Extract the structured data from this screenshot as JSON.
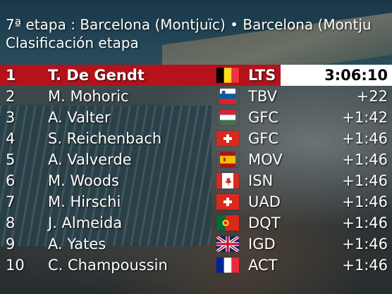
{
  "header": {
    "stage_line": "7ª etapa : Barcelona (Montjuïc) • Barcelona (Montju",
    "classification": "Clasificación etapa"
  },
  "colors": {
    "leader_red": "#b5121b",
    "white": "#ffffff"
  },
  "rows": [
    {
      "pos": "1",
      "name": "T. De Gendt",
      "flag": "belgium-flag-icon",
      "team": "LTS",
      "time": "3:06:10"
    },
    {
      "pos": "2",
      "name": "M. Mohoric",
      "flag": "slovenia-flag-icon",
      "team": "TBV",
      "time": "+22"
    },
    {
      "pos": "3",
      "name": "A. Valter",
      "flag": "hungary-flag-icon",
      "team": "GFC",
      "time": "+1:42"
    },
    {
      "pos": "4",
      "name": "S. Reichenbach",
      "flag": "switzerland-flag-icon",
      "team": "GFC",
      "time": "+1:46"
    },
    {
      "pos": "5",
      "name": "A. Valverde",
      "flag": "spain-flag-icon",
      "team": "MOV",
      "time": "+1:46"
    },
    {
      "pos": "6",
      "name": "M. Woods",
      "flag": "canada-flag-icon",
      "team": "ISN",
      "time": "+1:46"
    },
    {
      "pos": "7",
      "name": "M. Hirschi",
      "flag": "switzerland-flag-icon",
      "team": "UAD",
      "time": "+1:46"
    },
    {
      "pos": "8",
      "name": "J. Almeida",
      "flag": "portugal-flag-icon",
      "team": "DQT",
      "time": "+1:46"
    },
    {
      "pos": "9",
      "name": "A. Yates",
      "flag": "uk-flag-icon",
      "team": "IGD",
      "time": "+1:46"
    },
    {
      "pos": "10",
      "name": "C. Champoussin",
      "flag": "france-flag-icon",
      "team": "ACT",
      "time": "+1:46"
    }
  ]
}
